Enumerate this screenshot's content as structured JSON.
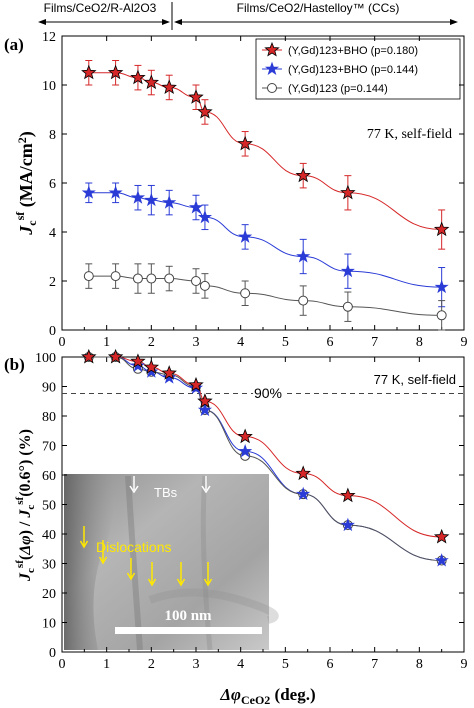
{
  "header": {
    "left_label": "Films/CeO2/R-Al2O3",
    "right_label": "Films/CeO2/Hastelloy™ (CCs)"
  },
  "chart_data": [
    {
      "type": "line",
      "panel_label": "(a)",
      "annotation": "77 K, self-field",
      "ylabel": "Jc sf (MA/cm2)",
      "xlim": [
        0,
        9
      ],
      "ylim": [
        0,
        12
      ],
      "yticks": [
        0,
        2,
        4,
        6,
        8,
        10,
        12
      ],
      "xticks": [
        0,
        1,
        2,
        3,
        4,
        5,
        6,
        7,
        8,
        9
      ],
      "legend_position": "top-right",
      "x": [
        0.6,
        1.2,
        1.7,
        2.0,
        2.4,
        3.0,
        3.2,
        4.1,
        5.4,
        6.4,
        8.5
      ],
      "series": [
        {
          "name": "(Y,Gd)123+BHO (p=0.180)",
          "color": "#d62728",
          "marker": "star-red",
          "values": [
            10.5,
            10.5,
            10.3,
            10.1,
            9.9,
            9.5,
            8.9,
            7.6,
            6.3,
            5.6,
            4.1
          ],
          "errors": [
            0.5,
            0.5,
            0.5,
            0.5,
            0.5,
            0.5,
            0.5,
            0.5,
            0.5,
            0.7,
            0.8
          ]
        },
        {
          "name": "(Y,Gd)123+BHO (p=0.144)",
          "color": "#2a3bd6",
          "marker": "star-blue",
          "values": [
            5.6,
            5.6,
            5.4,
            5.3,
            5.2,
            5.0,
            4.6,
            3.8,
            3.0,
            2.4,
            1.75
          ],
          "errors": [
            0.4,
            0.4,
            0.5,
            0.6,
            0.5,
            0.5,
            0.5,
            0.5,
            0.7,
            0.7,
            0.8
          ]
        },
        {
          "name": "(Y,Gd)123 (p=0.144)",
          "color": "#555555",
          "marker": "circle-open",
          "values": [
            2.2,
            2.2,
            2.1,
            2.1,
            2.1,
            2.0,
            1.8,
            1.5,
            1.2,
            0.95,
            0.6
          ],
          "errors": [
            0.5,
            0.5,
            0.6,
            0.6,
            0.5,
            0.5,
            0.5,
            0.5,
            0.6,
            0.6,
            0.6
          ]
        }
      ]
    },
    {
      "type": "line",
      "panel_label": "(b)",
      "annotation": "77 K, self-field",
      "reference_label": "90%",
      "reference_value": 90,
      "ylabel": "Jc sf(Δφ) / Jc sf(0.6°) (%)",
      "xlabel": "ΔφCeO2 (deg.)",
      "xlim": [
        0,
        9
      ],
      "ylim": [
        0,
        100
      ],
      "yticks": [
        0,
        10,
        20,
        30,
        40,
        50,
        60,
        70,
        80,
        90,
        100
      ],
      "xticks": [
        0,
        1,
        2,
        3,
        4,
        5,
        6,
        7,
        8,
        9
      ],
      "x": [
        0.6,
        1.2,
        1.7,
        2.0,
        2.4,
        3.0,
        3.2,
        4.1,
        5.4,
        6.4,
        8.5
      ],
      "series": [
        {
          "name": "(Y,Gd)123+BHO (p=0.180)",
          "color": "#d62728",
          "marker": "star-red",
          "values": [
            100,
            100,
            98.5,
            96.5,
            94.5,
            90.5,
            85,
            73,
            60.5,
            53,
            39
          ]
        },
        {
          "name": "(Y,Gd)123+BHO (p=0.144)",
          "color": "#2a3bd6",
          "marker": "star-blue",
          "values": [
            100,
            100,
            97,
            95,
            93,
            89.5,
            82,
            68,
            53.5,
            43,
            31
          ]
        },
        {
          "name": "(Y,Gd)123 (p=0.144)",
          "color": "#555555",
          "marker": "circle-open",
          "values": [
            100,
            100,
            96,
            95,
            94,
            90,
            82,
            66.5,
            53.5,
            43,
            31
          ]
        }
      ],
      "inset": {
        "label_tbs": "TBs",
        "label_dislocations": "Dislocations",
        "scale_bar_label": "100 nm"
      }
    }
  ]
}
